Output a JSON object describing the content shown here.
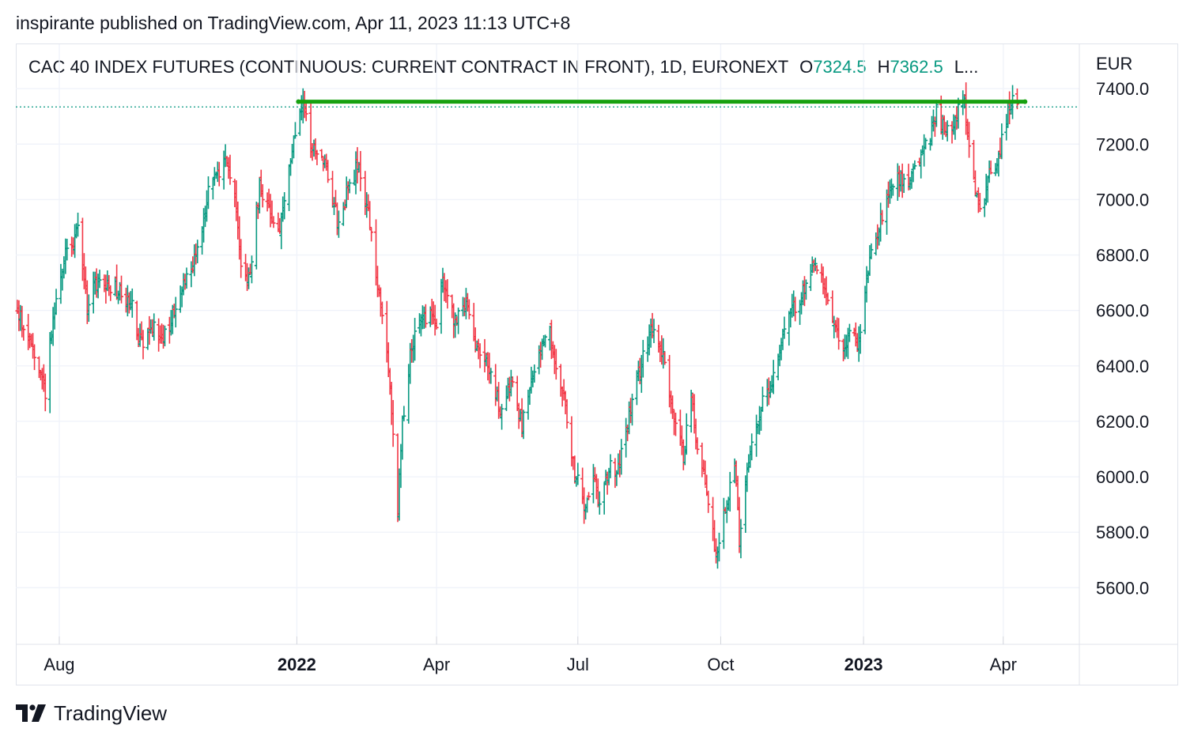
{
  "header": {
    "published_line": "inspirante published on TradingView.com, Apr 11, 2023 11:13 UTC+8"
  },
  "legend": {
    "symbol": "CAC 40 INDEX FUTURES (CONTINUOUS: CURRENT CONTRACT IN FRONT), 1D, EURONEXT",
    "open_label": "O",
    "open_value": "7324.5",
    "high_label": "H",
    "high_value": "7362.5",
    "more": "L..."
  },
  "axis": {
    "currency": "EUR"
  },
  "footer": {
    "brand": "TradingView"
  },
  "colors": {
    "up": "#089981",
    "down": "#f23645",
    "drawn_line": "#17a10f",
    "grid": "#f0f3fa",
    "last_price_line": "#089981"
  },
  "chart_data": {
    "type": "bar",
    "style": "ohlc",
    "symbol": "CAC 40 INDEX FUTURES (CONTINUOUS: CURRENT CONTRACT IN FRONT)",
    "interval": "1D",
    "exchange": "EURONEXT",
    "currency": "EUR",
    "ylim": [
      5410,
      7560
    ],
    "y_ticks": [
      "5600.0",
      "5800.0",
      "6000.0",
      "6200.0",
      "6400.0",
      "6600.0",
      "6800.0",
      "7000.0",
      "7200.0",
      "7400.0"
    ],
    "x_ticks": [
      {
        "label": "Aug",
        "date": "2021-08-01",
        "bold": false
      },
      {
        "label": "2022",
        "date": "2022-01-01",
        "bold": true
      },
      {
        "label": "Apr",
        "date": "2022-04-01",
        "bold": false
      },
      {
        "label": "Jul",
        "date": "2022-07-01",
        "bold": false
      },
      {
        "label": "Oct",
        "date": "2022-10-01",
        "bold": false
      },
      {
        "label": "2023",
        "date": "2023-01-01",
        "bold": true
      },
      {
        "label": "Apr",
        "date": "2023-04-01",
        "bold": false
      }
    ],
    "x_range": [
      "2021-07-04",
      "2023-05-20"
    ],
    "last_price": 7334,
    "horizontal_line": {
      "y": 7353,
      "x_start": "2022-01-02",
      "x_end": "2023-04-15"
    },
    "grid": true,
    "anchors": [
      [
        "2021-07-05",
        6590
      ],
      [
        "2021-07-12",
        6520
      ],
      [
        "2021-07-19",
        6400
      ],
      [
        "2021-07-23",
        6300
      ],
      [
        "2021-07-27",
        6530
      ],
      [
        "2021-08-05",
        6800
      ],
      [
        "2021-08-13",
        6880
      ],
      [
        "2021-08-19",
        6620
      ],
      [
        "2021-08-27",
        6720
      ],
      [
        "2021-09-06",
        6680
      ],
      [
        "2021-09-17",
        6620
      ],
      [
        "2021-09-22",
        6480
      ],
      [
        "2021-09-30",
        6540
      ],
      [
        "2021-10-06",
        6470
      ],
      [
        "2021-10-15",
        6620
      ],
      [
        "2021-10-26",
        6760
      ],
      [
        "2021-11-05",
        7020
      ],
      [
        "2021-11-17",
        7150
      ],
      [
        "2021-11-22",
        7020
      ],
      [
        "2021-11-26",
        6780
      ],
      [
        "2021-12-01",
        6700
      ],
      [
        "2021-12-08",
        7040
      ],
      [
        "2021-12-13",
        6980
      ],
      [
        "2021-12-20",
        6880
      ],
      [
        "2021-12-29",
        7180
      ],
      [
        "2022-01-05",
        7350
      ],
      [
        "2022-01-10",
        7180
      ],
      [
        "2022-01-18",
        7150
      ],
      [
        "2022-01-24",
        7000
      ],
      [
        "2022-01-28",
        6900
      ],
      [
        "2022-02-03",
        7050
      ],
      [
        "2022-02-10",
        7130
      ],
      [
        "2022-02-17",
        6920
      ],
      [
        "2022-02-25",
        6560
      ],
      [
        "2022-03-01",
        6400
      ],
      [
        "2022-03-07",
        5880
      ],
      [
        "2022-03-10",
        6200
      ],
      [
        "2022-03-16",
        6480
      ],
      [
        "2022-03-28",
        6610
      ],
      [
        "2022-04-01",
        6540
      ],
      [
        "2022-04-05",
        6720
      ],
      [
        "2022-04-12",
        6560
      ],
      [
        "2022-04-20",
        6620
      ],
      [
        "2022-04-26",
        6480
      ],
      [
        "2022-05-05",
        6380
      ],
      [
        "2022-05-12",
        6250
      ],
      [
        "2022-05-19",
        6350
      ],
      [
        "2022-05-26",
        6180
      ],
      [
        "2022-06-03",
        6380
      ],
      [
        "2022-06-08",
        6460
      ],
      [
        "2022-06-13",
        6520
      ],
      [
        "2022-06-17",
        6380
      ],
      [
        "2022-06-22",
        6300
      ],
      [
        "2022-06-28",
        6050
      ],
      [
        "2022-07-05",
        5880
      ],
      [
        "2022-07-11",
        6000
      ],
      [
        "2022-07-15",
        5880
      ],
      [
        "2022-07-22",
        6050
      ],
      [
        "2022-07-26",
        6000
      ],
      [
        "2022-08-03",
        6220
      ],
      [
        "2022-08-10",
        6380
      ],
      [
        "2022-08-17",
        6550
      ],
      [
        "2022-08-22",
        6480
      ],
      [
        "2022-08-26",
        6420
      ],
      [
        "2022-09-01",
        6200
      ],
      [
        "2022-09-07",
        6080
      ],
      [
        "2022-09-12",
        6300
      ],
      [
        "2022-09-16",
        6100
      ],
      [
        "2022-09-22",
        5950
      ],
      [
        "2022-09-28",
        5720
      ],
      [
        "2022-10-04",
        5900
      ],
      [
        "2022-10-10",
        6050
      ],
      [
        "2022-10-13",
        5780
      ],
      [
        "2022-10-18",
        6040
      ],
      [
        "2022-10-27",
        6250
      ],
      [
        "2022-11-04",
        6360
      ],
      [
        "2022-11-10",
        6520
      ],
      [
        "2022-11-18",
        6620
      ],
      [
        "2022-11-25",
        6680
      ],
      [
        "2022-12-01",
        6760
      ],
      [
        "2022-12-09",
        6640
      ],
      [
        "2022-12-14",
        6520
      ],
      [
        "2022-12-19",
        6460
      ],
      [
        "2022-12-23",
        6520
      ],
      [
        "2022-12-29",
        6480
      ],
      [
        "2023-01-04",
        6750
      ],
      [
        "2023-01-10",
        6880
      ],
      [
        "2023-01-16",
        7020
      ],
      [
        "2023-01-23",
        7080
      ],
      [
        "2023-01-31",
        7060
      ],
      [
        "2023-02-07",
        7160
      ],
      [
        "2023-02-14",
        7250
      ],
      [
        "2023-02-17",
        7330
      ],
      [
        "2023-02-23",
        7230
      ],
      [
        "2023-03-01",
        7300
      ],
      [
        "2023-03-07",
        7350
      ],
      [
        "2023-03-10",
        7190
      ],
      [
        "2023-03-14",
        7050
      ],
      [
        "2023-03-17",
        6950
      ],
      [
        "2023-03-22",
        7080
      ],
      [
        "2023-03-28",
        7140
      ],
      [
        "2023-04-03",
        7290
      ],
      [
        "2023-04-06",
        7350
      ],
      [
        "2023-04-10",
        7330
      ]
    ]
  }
}
